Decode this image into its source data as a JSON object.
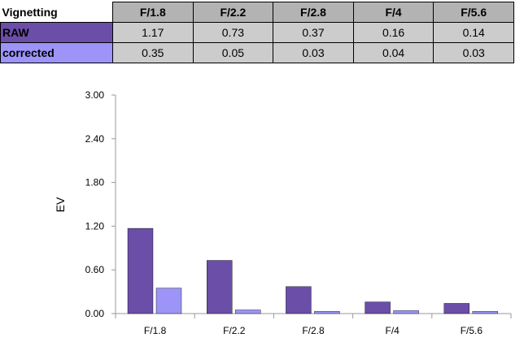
{
  "table": {
    "corner_label": "Vignetting",
    "columns": [
      "F/1.8",
      "F/2.2",
      "F/2.8",
      "F/4",
      "F/5.6"
    ],
    "rows": [
      {
        "label": "RAW",
        "color": "#6a4ea8",
        "values": [
          "1.17",
          "0.73",
          "0.37",
          "0.16",
          "0.14"
        ]
      },
      {
        "label": "corrected",
        "color": "#9d94f7",
        "values": [
          "0.35",
          "0.05",
          "0.03",
          "0.04",
          "0.03"
        ]
      }
    ]
  },
  "chart_data": {
    "type": "bar",
    "categories": [
      "F/1.8",
      "F/2.2",
      "F/2.8",
      "F/4",
      "F/5.6"
    ],
    "series": [
      {
        "name": "RAW",
        "color": "#6a4ea8",
        "values": [
          1.17,
          0.73,
          0.37,
          0.16,
          0.14
        ]
      },
      {
        "name": "corrected",
        "color": "#9d94f7",
        "values": [
          0.35,
          0.05,
          0.03,
          0.04,
          0.03
        ]
      }
    ],
    "ylabel": "EV",
    "ylim": [
      0,
      3.0
    ],
    "yticks": [
      "0.00",
      "0.60",
      "1.20",
      "1.80",
      "2.40",
      "3.00"
    ],
    "grid": false,
    "legend": "none"
  }
}
